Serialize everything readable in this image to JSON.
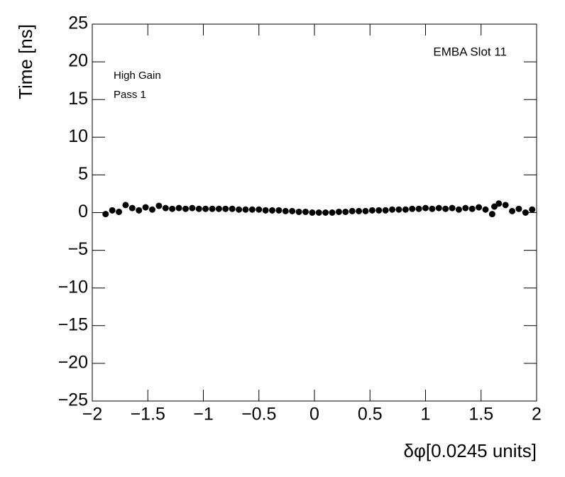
{
  "chart_data": {
    "type": "scatter",
    "x_label": "δφ[0.0245 units]",
    "y_label": "Time [ns]",
    "annotations": [
      "EMBA Slot 11",
      "High Gain",
      "Pass 1"
    ],
    "xlim": [
      -2,
      2
    ],
    "ylim": [
      -25,
      25
    ],
    "xticks": [
      {
        "value": -2,
        "label": "−2"
      },
      {
        "value": -1.5,
        "label": "−1.5"
      },
      {
        "value": -1,
        "label": "−1"
      },
      {
        "value": -0.5,
        "label": "−0.5"
      },
      0,
      0.5,
      1,
      1.5,
      2
    ],
    "yticks": [
      {
        "value": -25,
        "label": "−25"
      },
      {
        "value": -20,
        "label": "−20"
      },
      {
        "value": -15,
        "label": "−15"
      },
      {
        "value": -10,
        "label": "−10"
      },
      {
        "value": -5,
        "label": "−5"
      },
      0,
      5,
      10,
      15,
      20,
      25
    ],
    "series": [
      {
        "color": "#000000",
        "x": [
          -1.88,
          -1.82,
          -1.76,
          -1.7,
          -1.64,
          -1.58,
          -1.52,
          -1.46,
          -1.4,
          -1.34,
          -1.28,
          -1.22,
          -1.16,
          -1.1,
          -1.04,
          -0.98,
          -0.92,
          -0.86,
          -0.8,
          -0.74,
          -0.68,
          -0.62,
          -0.56,
          -0.5,
          -0.44,
          -0.38,
          -0.32,
          -0.26,
          -0.2,
          -0.14,
          -0.08,
          -0.02,
          0.04,
          0.1,
          0.16,
          0.22,
          0.28,
          0.34,
          0.4,
          0.46,
          0.52,
          0.58,
          0.64,
          0.7,
          0.76,
          0.82,
          0.88,
          0.94,
          1.0,
          1.06,
          1.12,
          1.18,
          1.24,
          1.3,
          1.36,
          1.42,
          1.48,
          1.54,
          1.6,
          1.62,
          1.66,
          1.72,
          1.78,
          1.84,
          1.9,
          1.96
        ],
        "values": [
          -0.2,
          0.3,
          0.1,
          1.0,
          0.6,
          0.3,
          0.7,
          0.4,
          0.9,
          0.6,
          0.5,
          0.6,
          0.5,
          0.6,
          0.5,
          0.5,
          0.5,
          0.5,
          0.5,
          0.5,
          0.4,
          0.4,
          0.4,
          0.4,
          0.3,
          0.3,
          0.3,
          0.2,
          0.2,
          0.1,
          0.1,
          0.0,
          0.0,
          0.0,
          0.0,
          0.1,
          0.1,
          0.2,
          0.2,
          0.2,
          0.3,
          0.3,
          0.3,
          0.4,
          0.4,
          0.4,
          0.5,
          0.5,
          0.6,
          0.5,
          0.6,
          0.5,
          0.6,
          0.4,
          0.6,
          0.5,
          0.7,
          0.4,
          -0.2,
          0.8,
          1.2,
          1.0,
          0.2,
          0.5,
          0.0,
          0.4
        ]
      }
    ]
  }
}
